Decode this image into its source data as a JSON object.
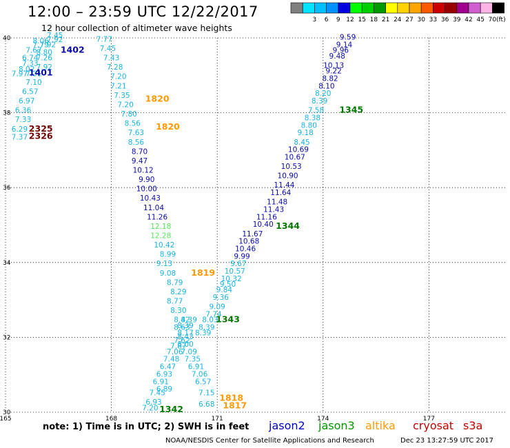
{
  "header": {
    "title": "12:00 – 23:59 UTC 12/22/2017",
    "subtitle": "12 hour collection of altimeter wave heights"
  },
  "colorbar": {
    "unit": "(ft)",
    "swatches": [
      {
        "color": "#808080",
        "label": ""
      },
      {
        "color": "#00e5ff",
        "label": "3"
      },
      {
        "color": "#00bfff",
        "label": "6"
      },
      {
        "color": "#0090ff",
        "label": "9"
      },
      {
        "color": "#0000e0",
        "label": "12"
      },
      {
        "color": "#00ff00",
        "label": "15"
      },
      {
        "color": "#00d000",
        "label": "18"
      },
      {
        "color": "#009a00",
        "label": "21"
      },
      {
        "color": "#ffff00",
        "label": "24"
      },
      {
        "color": "#ffd200",
        "label": "27"
      },
      {
        "color": "#ffa500",
        "label": "30"
      },
      {
        "color": "#ff5a00",
        "label": "33"
      },
      {
        "color": "#cc0000",
        "label": "36"
      },
      {
        "color": "#990000",
        "label": "39"
      },
      {
        "color": "#a0008c",
        "label": "42"
      },
      {
        "color": "#d060d0",
        "label": "45"
      },
      {
        "color": "#ffb4e6",
        "label": "70"
      },
      {
        "color": "#000000",
        "label": ""
      }
    ]
  },
  "map": {
    "lon_range": [
      165,
      179.2
    ],
    "lat_range": [
      30,
      40
    ],
    "lon_ticks": [
      "165",
      "168",
      "171",
      "174",
      "177"
    ],
    "lat_ticks": [
      "30",
      "32",
      "34",
      "36",
      "38",
      "40"
    ],
    "grid": "dotted"
  },
  "colors": {
    "light_blue": "#19b4e1",
    "dark_blue": "#0a0aaa",
    "light_green": "#55e655",
    "dark_green": "#007800",
    "orange": "#ff9900",
    "dark_red": "#6e0000",
    "red": "#c80000",
    "jason2": "#0000cd",
    "jason3": "#009600",
    "altika": "#ff9900",
    "cryosat": "#c80000",
    "s3a": "#c80000"
  },
  "tracks": [
    {
      "name": "track-a-west",
      "color": "light_blue",
      "points": [
        [
          166.4,
          40.0,
          "7.45"
        ],
        [
          166.4,
          39.89,
          "7.92"
        ],
        [
          166.0,
          39.85,
          "8.06"
        ],
        [
          166.0,
          39.75,
          "7.79"
        ],
        [
          166.2,
          39.75,
          "7.92"
        ],
        [
          165.8,
          39.6,
          "7.67"
        ],
        [
          166.1,
          39.55,
          "8.80"
        ],
        [
          166.1,
          39.4,
          "7.26"
        ],
        [
          165.7,
          39.4,
          "6.74"
        ],
        [
          165.7,
          39.25,
          "7.33"
        ],
        [
          166.1,
          39.15,
          "7.92"
        ],
        [
          165.6,
          39.1,
          "8.02"
        ],
        [
          165.4,
          38.98,
          "7.97"
        ],
        [
          165.8,
          38.98,
          "7.31"
        ],
        [
          165.8,
          38.75,
          "7.10"
        ],
        [
          165.7,
          38.5,
          "6.57"
        ],
        [
          165.6,
          38.25,
          "6.97"
        ],
        [
          165.5,
          38.0,
          "6.36"
        ],
        [
          165.5,
          37.75,
          "7.33"
        ],
        [
          165.4,
          37.5,
          "6.29"
        ],
        [
          165.4,
          37.28,
          "7.37"
        ]
      ]
    },
    {
      "name": "track-b",
      "color": "light_blue",
      "points": [
        [
          167.8,
          39.9,
          "7.77"
        ],
        [
          167.9,
          39.65,
          "7.45"
        ],
        [
          168.0,
          39.4,
          "7.43"
        ],
        [
          168.1,
          39.15,
          "7.28"
        ],
        [
          168.2,
          38.9,
          "7.20"
        ],
        [
          168.2,
          38.65,
          "7.21"
        ],
        [
          168.3,
          38.4,
          "7.35"
        ],
        [
          168.4,
          38.15,
          "7.20"
        ],
        [
          168.5,
          37.9,
          "7.80"
        ],
        [
          168.6,
          37.65,
          "8.56"
        ],
        [
          168.7,
          37.4,
          "7.63"
        ],
        [
          168.7,
          37.15,
          "8.56"
        ]
      ]
    },
    {
      "name": "track-b-dark",
      "color": "dark_blue",
      "points": [
        [
          168.8,
          36.9,
          "8.70"
        ],
        [
          168.8,
          36.65,
          "9.47"
        ],
        [
          168.9,
          36.4,
          "10.12"
        ],
        [
          169.0,
          36.15,
          "9.90"
        ],
        [
          169.0,
          35.9,
          "10.00"
        ],
        [
          169.1,
          35.65,
          "10.43"
        ],
        [
          169.2,
          35.4,
          "11.04"
        ],
        [
          169.3,
          35.15,
          "11.26"
        ]
      ]
    },
    {
      "name": "track-b-green",
      "color": "light_green",
      "points": [
        [
          169.4,
          34.9,
          "12.18"
        ],
        [
          169.4,
          34.65,
          "12.28"
        ]
      ]
    },
    {
      "name": "track-b-end",
      "color": "light_blue",
      "points": [
        [
          169.5,
          34.4,
          "10.42"
        ],
        [
          169.6,
          34.15,
          "8.99"
        ],
        [
          169.5,
          33.9,
          "9.13"
        ],
        [
          169.6,
          33.65,
          "9.08"
        ],
        [
          169.8,
          33.4,
          "8.79"
        ],
        [
          169.9,
          33.15,
          "8.29"
        ],
        [
          169.8,
          32.9,
          "8.77"
        ],
        [
          169.9,
          32.65,
          "8.30"
        ],
        [
          170.0,
          32.4,
          "8.42"
        ],
        [
          170.2,
          32.4,
          "8.39"
        ],
        [
          170.1,
          32.25,
          "8.39"
        ],
        [
          170.0,
          32.2,
          "8.63"
        ],
        [
          170.1,
          32.05,
          "8.17"
        ],
        [
          170.1,
          31.95,
          "8.43"
        ],
        [
          170.0,
          31.85,
          "7.62"
        ],
        [
          170.1,
          31.75,
          "8.00"
        ],
        [
          169.9,
          31.7,
          "7.87"
        ],
        [
          169.8,
          31.55,
          "7.06"
        ],
        [
          170.2,
          31.55,
          "7.09"
        ],
        [
          169.7,
          31.35,
          "7.48"
        ],
        [
          170.3,
          31.35,
          "7.35"
        ],
        [
          169.6,
          31.15,
          "6.47"
        ],
        [
          170.4,
          31.15,
          "6.91"
        ],
        [
          169.5,
          30.95,
          "6.93"
        ],
        [
          170.5,
          30.95,
          "7.06"
        ],
        [
          169.4,
          30.75,
          "6.91"
        ],
        [
          170.6,
          30.75,
          "6.57"
        ],
        [
          169.5,
          30.55,
          "6.89"
        ],
        [
          169.3,
          30.45,
          "7.45"
        ],
        [
          170.7,
          30.45,
          "7.15"
        ],
        [
          169.2,
          30.2,
          "6.93"
        ],
        [
          169.1,
          30.05,
          "7.20"
        ],
        [
          170.7,
          30.15,
          "6.68"
        ]
      ]
    },
    {
      "name": "track-c-upper",
      "color": "dark_blue",
      "points": [
        [
          174.7,
          39.95,
          "9.59"
        ],
        [
          174.6,
          39.75,
          "9.14"
        ],
        [
          174.5,
          39.6,
          "9.96"
        ],
        [
          174.4,
          39.45,
          "9.48"
        ],
        [
          174.3,
          39.2,
          "10.13"
        ],
        [
          174.3,
          39.05,
          "9.22"
        ],
        [
          174.2,
          38.85,
          "8.82"
        ],
        [
          174.1,
          38.65,
          "8.10"
        ]
      ]
    },
    {
      "name": "track-c-light",
      "color": "light_blue",
      "points": [
        [
          174.0,
          38.45,
          "8.20"
        ],
        [
          173.9,
          38.25,
          "8.39"
        ],
        [
          173.8,
          38.0,
          "7.58"
        ],
        [
          173.7,
          37.8,
          "8.38"
        ],
        [
          173.6,
          37.6,
          "8.80"
        ],
        [
          173.5,
          37.4,
          "9.18"
        ],
        [
          173.4,
          37.15,
          "8.45"
        ]
      ]
    },
    {
      "name": "track-c-lower",
      "color": "dark_blue",
      "points": [
        [
          173.3,
          36.95,
          "10.69"
        ],
        [
          173.2,
          36.75,
          "10.67"
        ],
        [
          173.1,
          36.5,
          "10.53"
        ],
        [
          173.0,
          36.25,
          "10.90"
        ],
        [
          172.9,
          36.0,
          "11.44"
        ],
        [
          172.8,
          35.8,
          "11.64"
        ],
        [
          172.7,
          35.55,
          "11.48"
        ],
        [
          172.6,
          35.35,
          "11.43"
        ],
        [
          172.4,
          35.15,
          "11.16"
        ],
        [
          172.3,
          34.95,
          "10.40"
        ],
        [
          172.0,
          34.7,
          "11.67"
        ],
        [
          171.9,
          34.5,
          "10.68"
        ],
        [
          171.8,
          34.3,
          "10.46"
        ],
        [
          171.7,
          34.1,
          "9.99"
        ]
      ]
    },
    {
      "name": "track-c-bottom",
      "color": "light_blue",
      "points": [
        [
          171.6,
          33.9,
          "9.67"
        ],
        [
          171.5,
          33.7,
          "10.57"
        ],
        [
          171.4,
          33.5,
          "10.32"
        ],
        [
          171.3,
          33.35,
          "9.50"
        ],
        [
          171.2,
          33.2,
          "9.84"
        ],
        [
          171.1,
          33.0,
          "9.36"
        ],
        [
          171.0,
          32.75,
          "9.09"
        ],
        [
          170.9,
          32.55,
          "7.74"
        ],
        [
          170.8,
          32.4,
          "8.03"
        ],
        [
          170.7,
          32.2,
          "8.39"
        ],
        [
          170.6,
          32.05,
          "8.39"
        ]
      ]
    }
  ],
  "markers": [
    {
      "text": "1402",
      "lon": 166.9,
      "lat": 39.6,
      "color": "dark_blue"
    },
    {
      "text": "1401",
      "lon": 166.0,
      "lat": 39.0,
      "color": "dark_blue"
    },
    {
      "text": "2325",
      "lon": 166.0,
      "lat": 37.5,
      "color": "dark_red"
    },
    {
      "text": "2326",
      "lon": 166.0,
      "lat": 37.3,
      "color": "dark_red"
    },
    {
      "text": "1820",
      "lon": 169.3,
      "lat": 38.3,
      "color": "orange"
    },
    {
      "text": "1820",
      "lon": 169.6,
      "lat": 37.55,
      "color": "orange"
    },
    {
      "text": "1345",
      "lon": 174.8,
      "lat": 38.0,
      "color": "dark_green"
    },
    {
      "text": "1344",
      "lon": 173.0,
      "lat": 34.9,
      "color": "dark_green"
    },
    {
      "text": "1819",
      "lon": 170.6,
      "lat": 33.65,
      "color": "orange"
    },
    {
      "text": "1343",
      "lon": 171.3,
      "lat": 32.4,
      "color": "dark_green"
    },
    {
      "text": "1818",
      "lon": 171.4,
      "lat": 30.3,
      "color": "orange"
    },
    {
      "text": "1817",
      "lon": 171.5,
      "lat": 30.1,
      "color": "orange"
    },
    {
      "text": "1342",
      "lon": 169.7,
      "lat": 30.0,
      "color": "dark_green"
    }
  ],
  "footer": {
    "note": "note:  1) Time is in UTC;  2) SWH is in feet",
    "satellites": [
      {
        "label": "jason2",
        "color": "jason2"
      },
      {
        "label": "jason3",
        "color": "jason3"
      },
      {
        "label": "altika",
        "color": "altika"
      },
      {
        "label": "cryosat",
        "color": "cryosat"
      },
      {
        "label": "s3a",
        "color": "s3a"
      }
    ],
    "credit": "NOAA/NESDIS Center for Satellite Applications and Research",
    "timestamp": "Dec 23 13:27:59 UTC 2017"
  }
}
